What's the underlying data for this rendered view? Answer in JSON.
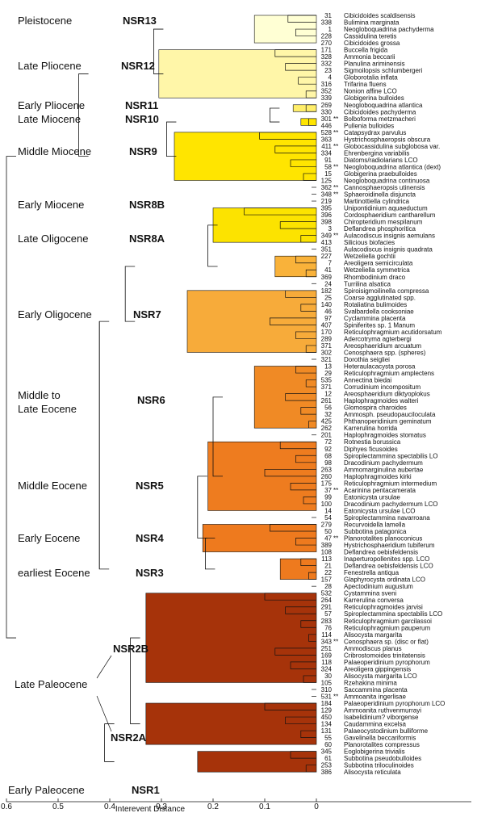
{
  "diagram": {
    "x_axis": {
      "label": "Interevent Distance",
      "min": 0,
      "max": 0.6,
      "reversed": true,
      "ticks": [
        "0.6",
        "0.5",
        "0.4",
        "0.3",
        "0.2",
        "0.1",
        "0"
      ]
    },
    "zones": [
      {
        "epoch": "Pleistocene",
        "name": "NSR13",
        "color": "#FFFFD4",
        "dist": 0.12
      },
      {
        "epoch": "Late Pliocene",
        "name": "NSR12",
        "color": "#FFF6A8",
        "dist": 0.305
      },
      {
        "epoch": "Early Pliocene",
        "name": "NSR11",
        "color": "#FFEE6A",
        "dist": 0.045
      },
      {
        "epoch": "Late Miocene",
        "name": "NSR10",
        "color": "#FFE500",
        "dist": 0.03
      },
      {
        "epoch": "Middle Miocene",
        "name": "NSR9",
        "color": "#FFE500",
        "dist": 0.275
      },
      {
        "epoch": "Early Miocene",
        "name": "NSR8B",
        "color": "#FCE300",
        "dist": 0.2
      },
      {
        "epoch": "Late Oligocene",
        "name": "NSR8A",
        "color": "#F9B23A",
        "dist": 0.08
      },
      {
        "epoch": "Early Oligocene",
        "name": "NSR7",
        "color": "#F7AB3A",
        "dist": 0.25
      },
      {
        "epoch": "Middle to Late Eocene",
        "name": "NSR6",
        "color": "#F08A25",
        "dist": 0.12
      },
      {
        "epoch": "Middle Eocene",
        "name": "NSR5",
        "color": "#EE7C1F",
        "dist": 0.21
      },
      {
        "epoch": "Early Eocene",
        "name": "NSR4",
        "color": "#EE7A1E",
        "dist": 0.22
      },
      {
        "epoch": "earliest Eocene",
        "name": "NSR3",
        "color": "#EE7A1E",
        "dist": 0.07
      },
      {
        "epoch": "Late Paleocene",
        "name": "NSR2B",
        "color": "#A6330A",
        "dist": 0.33
      },
      {
        "epoch": "",
        "name": "NSR2A",
        "color": "#A6330A",
        "dist": 0.33
      },
      {
        "epoch": "Early Paleocene",
        "name": "NSR1",
        "color": "#A6330A",
        "dist": 0.23
      }
    ],
    "taxa": [
      {
        "num": "31",
        "name": "Cibicidoides scaldisensis",
        "mark": "",
        "zone": 0,
        "dist": 0.055
      },
      {
        "num": "338",
        "name": "Bulimina marginata",
        "mark": "",
        "zone": 0,
        "dist": 0.055
      },
      {
        "num": "1",
        "name": "Neogloboquadrina pachyderma",
        "mark": "",
        "zone": 0,
        "dist": 0.04
      },
      {
        "num": "228",
        "name": "Cassidulina teretis",
        "mark": "",
        "zone": 0,
        "dist": 0.02
      },
      {
        "num": "270",
        "name": "Cibicidoides grossa",
        "mark": "",
        "zone": 0,
        "dist": 0.02
      },
      {
        "num": "171",
        "name": "Buccella frigida",
        "mark": "",
        "zone": 1,
        "dist": 0.08
      },
      {
        "num": "328",
        "name": "Ammonia beccarii",
        "mark": "",
        "zone": 1,
        "dist": 0.08
      },
      {
        "num": "332",
        "name": "Planulina ariminensis",
        "mark": "",
        "zone": 1,
        "dist": 0.06
      },
      {
        "num": "23",
        "name": "Sigmoilopsis schlumbergeri",
        "mark": "",
        "zone": 1,
        "dist": 0.035
      },
      {
        "num": "4",
        "name": "Globorotalia inflata",
        "mark": "",
        "zone": 1,
        "dist": 0.035
      },
      {
        "num": "316",
        "name": "Trifarina fluens",
        "mark": "",
        "zone": 1,
        "dist": 0.02
      },
      {
        "num": "352",
        "name": "Nonion affine LCO",
        "mark": "",
        "zone": 1,
        "dist": 0.02
      },
      {
        "num": "339",
        "name": "Globigerina bulloides",
        "mark": "",
        "zone": 1,
        "dist": 0.015
      },
      {
        "num": "269",
        "name": "Neogloboquadrina atlantica",
        "mark": "",
        "zone": 2,
        "dist": 0.02
      },
      {
        "num": "330",
        "name": "Cibicidoides pachyderma",
        "mark": "",
        "zone": 2,
        "dist": 0.02
      },
      {
        "num": "301",
        "name": "Bolboforma metzmacheri",
        "mark": "**",
        "zone": 3,
        "dist": 0.015
      },
      {
        "num": "446",
        "name": "Pullenia bulloides",
        "mark": "",
        "zone": 3,
        "dist": 0.015
      },
      {
        "num": "528",
        "name": "Catapsydrax parvulus",
        "mark": "**",
        "zone": 4,
        "dist": 0.11
      },
      {
        "num": "363",
        "name": "Hystrichosphaeropsis obscura",
        "mark": "",
        "zone": 4,
        "dist": 0.11
      },
      {
        "num": "411",
        "name": "Globocassidulina subglobosa var.",
        "mark": "**",
        "zone": 4,
        "dist": 0.08
      },
      {
        "num": "334",
        "name": "Ehrenbergina variabilis",
        "mark": "",
        "zone": 4,
        "dist": 0.08
      },
      {
        "num": "91",
        "name": "Diatoms/radiolarians LCO",
        "mark": "",
        "zone": 4,
        "dist": 0.05
      },
      {
        "num": "58",
        "name": "Neogloboquadrina atlantica (dext)",
        "mark": "**",
        "zone": 4,
        "dist": 0.05
      },
      {
        "num": "15",
        "name": "Globigerina praebulloides",
        "mark": "",
        "zone": 4,
        "dist": 0.025
      },
      {
        "num": "125",
        "name": "Neogloboquadrina continuosa",
        "mark": "",
        "zone": 4,
        "dist": 0.025
      },
      {
        "num": "362",
        "name": "Cannosphaeropsis utinensis",
        "mark": "**",
        "zone": -1,
        "dist": 0
      },
      {
        "num": "348",
        "name": "Sphaeroidinella disjuncta",
        "mark": "**",
        "zone": -1,
        "dist": 0
      },
      {
        "num": "219",
        "name": "Martinottiella cylindrica",
        "mark": "",
        "zone": -1,
        "dist": 0
      },
      {
        "num": "395",
        "name": "Unipontidinium aquaeductum",
        "mark": "",
        "zone": 5,
        "dist": 0.14
      },
      {
        "num": "396",
        "name": "Cordosphaeridium cantharellum",
        "mark": "",
        "zone": 5,
        "dist": 0.14
      },
      {
        "num": "398",
        "name": "Chiropteridium mespilanum",
        "mark": "",
        "zone": 5,
        "dist": 0.07
      },
      {
        "num": "3",
        "name": "Deflandrea phosphoritica",
        "mark": "",
        "zone": 5,
        "dist": 0.07
      },
      {
        "num": "349",
        "name": "Aulacodiscus insignis aemulans",
        "mark": "**",
        "zone": 5,
        "dist": 0.03
      },
      {
        "num": "413",
        "name": "Silicious biofacies",
        "mark": "",
        "zone": 5,
        "dist": 0.03
      },
      {
        "num": "351",
        "name": "Aulacodiscus insignis quadrata",
        "mark": "",
        "zone": -1,
        "dist": 0
      },
      {
        "num": "227",
        "name": "Wetzeliella gochtii",
        "mark": "",
        "zone": 6,
        "dist": 0.04
      },
      {
        "num": "7",
        "name": "Areoligera semicirculata",
        "mark": "",
        "zone": 6,
        "dist": 0.04
      },
      {
        "num": "41",
        "name": "Wetzeliella symmetrica",
        "mark": "",
        "zone": 6,
        "dist": 0.02
      },
      {
        "num": "369",
        "name": "Rhombodinium draco",
        "mark": "",
        "zone": 6,
        "dist": 0.02
      },
      {
        "num": "24",
        "name": "Turrilina alsatica",
        "mark": "",
        "zone": -1,
        "dist": 0
      },
      {
        "num": "182",
        "name": "Spiroisigmoilinella compressa",
        "mark": "",
        "zone": 7,
        "dist": 0.06
      },
      {
        "num": "25",
        "name": "Coarse agglutinated spp.",
        "mark": "",
        "zone": 7,
        "dist": 0.06
      },
      {
        "num": "140",
        "name": "Rotaliatina bulimoides",
        "mark": "",
        "zone": 7,
        "dist": 0.03
      },
      {
        "num": "46",
        "name": "Svalbardella cooksoniae",
        "mark": "",
        "zone": 7,
        "dist": 0.03
      },
      {
        "num": "97",
        "name": "Cyclammina placenta",
        "mark": "",
        "zone": 7,
        "dist": 0.09
      },
      {
        "num": "407",
        "name": "Spiniferites sp. 1 Manum",
        "mark": "",
        "zone": 7,
        "dist": 0.09
      },
      {
        "num": "170",
        "name": "Reticulophragmium acutidorsatum",
        "mark": "",
        "zone": 7,
        "dist": 0.04
      },
      {
        "num": "289",
        "name": "Adercotryma agterbergi",
        "mark": "",
        "zone": 7,
        "dist": 0.04
      },
      {
        "num": "371",
        "name": "Areosphaeridium arcuatum",
        "mark": "",
        "zone": 7,
        "dist": 0.02
      },
      {
        "num": "302",
        "name": "Cenosphaera spp. (spheres)",
        "mark": "",
        "zone": 7,
        "dist": 0.02
      },
      {
        "num": "321",
        "name": "Dorothia seigliei",
        "mark": "",
        "zone": -1,
        "dist": 0
      },
      {
        "num": "13",
        "name": "Heteraulacacysta porosa",
        "mark": "",
        "zone": 8,
        "dist": 0.04
      },
      {
        "num": "29",
        "name": "Reticulophragmium amplectens",
        "mark": "",
        "zone": 8,
        "dist": 0.04
      },
      {
        "num": "535",
        "name": "Annectina biedai",
        "mark": "",
        "zone": 8,
        "dist": 0.02
      },
      {
        "num": "371",
        "name": "Corrudinium incompositum",
        "mark": "",
        "zone": 8,
        "dist": 0.02
      },
      {
        "num": "12",
        "name": "Areosphaeridium diktyoplokus",
        "mark": "",
        "zone": 8,
        "dist": 0.06
      },
      {
        "num": "261",
        "name": "Haplophragmoides walteri",
        "mark": "",
        "zone": 8,
        "dist": 0.06
      },
      {
        "num": "56",
        "name": "Glomospira charoides",
        "mark": "",
        "zone": 8,
        "dist": 0.03
      },
      {
        "num": "32",
        "name": "Ammosph. pseudopauciloculata",
        "mark": "",
        "zone": 8,
        "dist": 0.03
      },
      {
        "num": "425",
        "name": "Phthanoperidinium geminatum",
        "mark": "",
        "zone": 8,
        "dist": 0.015
      },
      {
        "num": "262",
        "name": "Karrerulina horrida",
        "mark": "",
        "zone": 8,
        "dist": 0.015
      },
      {
        "num": "201",
        "name": "Haplophragmoides stomatus",
        "mark": "",
        "zone": -1,
        "dist": 0
      },
      {
        "num": "72",
        "name": "Rotnestia borussica",
        "mark": "",
        "zone": 9,
        "dist": 0.07
      },
      {
        "num": "92",
        "name": "Diphyes ficusoides",
        "mark": "",
        "zone": 9,
        "dist": 0.07
      },
      {
        "num": "68",
        "name": "Spiroplectammina spectabilis LO",
        "mark": "",
        "zone": 9,
        "dist": 0.04
      },
      {
        "num": "98",
        "name": "Dracodinium pachydermum",
        "mark": "",
        "zone": 9,
        "dist": 0.04
      },
      {
        "num": "263",
        "name": "Ammomarginulina aubertae",
        "mark": "",
        "zone": 9,
        "dist": 0.1
      },
      {
        "num": "260",
        "name": "Haplophragmoides kirki",
        "mark": "",
        "zone": 9,
        "dist": 0.1
      },
      {
        "num": "175",
        "name": "Reticulophragmium intermedium",
        "mark": "",
        "zone": 9,
        "dist": 0.05
      },
      {
        "num": "37",
        "name": "Acarinina pentacamerata",
        "mark": "**",
        "zone": 9,
        "dist": 0.05
      },
      {
        "num": "99",
        "name": "Eatonicysta ursulae",
        "mark": "",
        "zone": 9,
        "dist": 0.025
      },
      {
        "num": "100",
        "name": "Dracodinium pachydermum LCO",
        "mark": "",
        "zone": 9,
        "dist": 0.025
      },
      {
        "num": "14",
        "name": "Eatonicysta ursulae LCO",
        "mark": "",
        "zone": 9,
        "dist": 0.012
      },
      {
        "num": "54",
        "name": "Spiroplectammina navarroana",
        "mark": "",
        "zone": -1,
        "dist": 0
      },
      {
        "num": "279",
        "name": "Recurvoidella lamella",
        "mark": "",
        "zone": 10,
        "dist": 0.09
      },
      {
        "num": "50",
        "name": "Subbotina patagonica",
        "mark": "",
        "zone": 10,
        "dist": 0.09
      },
      {
        "num": "47",
        "name": "Planorotalites planoconicus",
        "mark": "**",
        "zone": 10,
        "dist": 0.04
      },
      {
        "num": "389",
        "name": "Hystrichosphaeridium tubiferum",
        "mark": "",
        "zone": 10,
        "dist": 0.04
      },
      {
        "num": "108",
        "name": "Deflandrea oebisfeldensis",
        "mark": "",
        "zone": 10,
        "dist": 0.02
      },
      {
        "num": "113",
        "name": "Inaperturopollenites spp. LCO",
        "mark": "",
        "zone": 11,
        "dist": 0.03
      },
      {
        "num": "21",
        "name": "Deflandrea oebisfeldensis LCO",
        "mark": "",
        "zone": 11,
        "dist": 0.03
      },
      {
        "num": "22",
        "name": "Fenestrella antiqua",
        "mark": "",
        "zone": 11,
        "dist": 0.015
      },
      {
        "num": "157",
        "name": "Glaphyrocysta ordinata LCO",
        "mark": "",
        "zone": 11,
        "dist": 0.015
      },
      {
        "num": "28",
        "name": "Apectodinium augustum",
        "mark": "",
        "zone": -1,
        "dist": 0
      },
      {
        "num": "532",
        "name": "Cystammina sveni",
        "mark": "",
        "zone": 12,
        "dist": 0.1
      },
      {
        "num": "264",
        "name": "Karrerulina conversa",
        "mark": "",
        "zone": 12,
        "dist": 0.1
      },
      {
        "num": "291",
        "name": "Reticulophragmoides jarvisi",
        "mark": "",
        "zone": 12,
        "dist": 0.06
      },
      {
        "num": "57",
        "name": "Spiroplectammina spectabilis LCO",
        "mark": "",
        "zone": 12,
        "dist": 0.06
      },
      {
        "num": "283",
        "name": "Reticulophragmium garcilassoi",
        "mark": "",
        "zone": 12,
        "dist": 0.03
      },
      {
        "num": "76",
        "name": "Reticulophragmium pauperum",
        "mark": "",
        "zone": 12,
        "dist": 0.03
      },
      {
        "num": "114",
        "name": "Alisocysta margarita",
        "mark": "",
        "zone": 12,
        "dist": 0.015
      },
      {
        "num": "343",
        "name": "Cenosphaera sp. (disc or flat)",
        "mark": "**",
        "zone": 12,
        "dist": 0.015
      },
      {
        "num": "251",
        "name": "Ammodiscus planus",
        "mark": "",
        "zone": 12,
        "dist": 0.08
      },
      {
        "num": "169",
        "name": "Cribrostomoides trinitatensis",
        "mark": "",
        "zone": 12,
        "dist": 0.08
      },
      {
        "num": "118",
        "name": "Palaeoperidinium pyrophorum",
        "mark": "",
        "zone": 12,
        "dist": 0.05
      },
      {
        "num": "324",
        "name": "Areoligera gippingensis",
        "mark": "",
        "zone": 12,
        "dist": 0.05
      },
      {
        "num": "30",
        "name": "Alisocysta margarita LCO",
        "mark": "",
        "zone": 12,
        "dist": 0.025
      },
      {
        "num": "105",
        "name": "Rzehakina minima",
        "mark": "",
        "zone": 12,
        "dist": 0.025
      },
      {
        "num": "310",
        "name": "Saccammina placenta",
        "mark": "",
        "zone": -1,
        "dist": 0
      },
      {
        "num": "531",
        "name": "Ammoanita ingerlisae",
        "mark": "**",
        "zone": -1,
        "dist": 0
      },
      {
        "num": "184",
        "name": "Palaeoperidinium pyrophorum LCO",
        "mark": "",
        "zone": 13,
        "dist": 0.1
      },
      {
        "num": "129",
        "name": "Ammoanita ruthvenmurrayi",
        "mark": "",
        "zone": 13,
        "dist": 0.1
      },
      {
        "num": "450",
        "name": "Isabelidinium? viborgense",
        "mark": "",
        "zone": 13,
        "dist": 0.06
      },
      {
        "num": "134",
        "name": "Caudammina excelsa",
        "mark": "",
        "zone": 13,
        "dist": 0.06
      },
      {
        "num": "131",
        "name": "Palaeocystodinium bulliforme",
        "mark": "",
        "zone": 13,
        "dist": 0.03
      },
      {
        "num": "55",
        "name": "Gavelinella beccariformis",
        "mark": "",
        "zone": 13,
        "dist": 0.03
      },
      {
        "num": "60",
        "name": "Planorotalites compressus",
        "mark": "",
        "zone": 13,
        "dist": 0.015
      },
      {
        "num": "345",
        "name": "Eoglobigerina trivialis",
        "mark": "",
        "zone": 14,
        "dist": 0.05
      },
      {
        "num": "61",
        "name": "Subbotina pseudobulloides",
        "mark": "",
        "zone": 14,
        "dist": 0.05
      },
      {
        "num": "253",
        "name": "Subbotina triloculinoides",
        "mark": "",
        "zone": 14,
        "dist": 0.02
      },
      {
        "num": "386",
        "name": "Alisocysta reticulata",
        "mark": "",
        "zone": 14,
        "dist": 0.02
      }
    ]
  }
}
